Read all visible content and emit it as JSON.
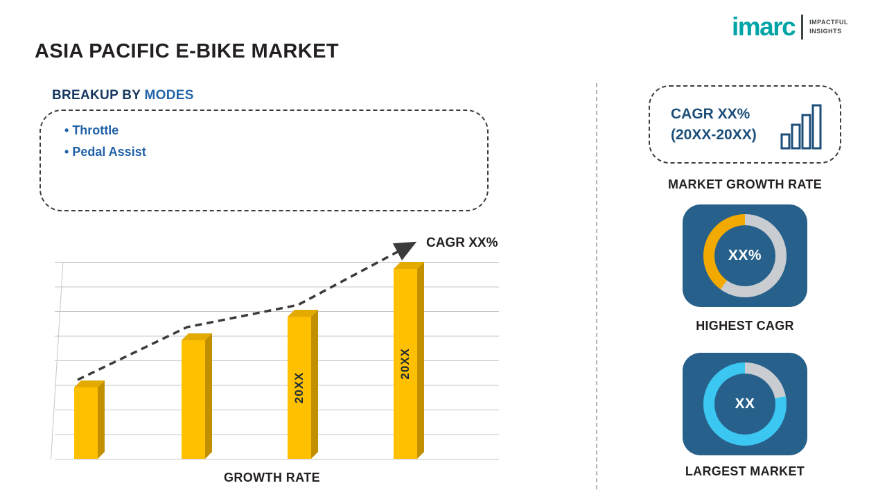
{
  "page": {
    "title": "ASIA PACIFIC E-BIKE MARKET"
  },
  "logo": {
    "brand": "imarc",
    "tagline_line1": "IMPACTFUL",
    "tagline_line2": "INSIGHTS"
  },
  "breakup": {
    "heading_prefix": "BREAKUP BY ",
    "heading_highlight": "MODES",
    "items": [
      "Throttle",
      "Pedal Assist"
    ]
  },
  "chart_data": [
    {
      "id": "growth_rate_bar",
      "type": "bar",
      "title": "GROWTH RATE",
      "categories": [
        "",
        "",
        "20XX",
        "20XX"
      ],
      "values": [
        36,
        60,
        72,
        96
      ],
      "ylim": [
        0,
        100
      ],
      "grid": true,
      "legend": "none",
      "bar_color": "#ffc000",
      "trend_label": "CAGR XX%",
      "trend_style": "dashed-arrow"
    },
    {
      "id": "highest_cagr_donut",
      "type": "pie",
      "label": "HIGHEST CAGR",
      "center_text": "XX%",
      "slices": [
        {
          "name": "highlight",
          "value": 40,
          "color": "#f2a900"
        },
        {
          "name": "remainder",
          "value": 60,
          "color": "#c9cdd2"
        }
      ]
    },
    {
      "id": "largest_market_donut",
      "type": "pie",
      "label": "LARGEST MARKET",
      "center_text": "XX",
      "slices": [
        {
          "name": "highlight",
          "value": 78,
          "color": "#3bc7f2"
        },
        {
          "name": "remainder",
          "value": 22,
          "color": "#c9cdd2"
        }
      ]
    }
  ],
  "right_panel": {
    "cagr_box": {
      "line1": "CAGR XX%",
      "line2": "(20XX-20XX)"
    },
    "market_growth_label": "MARKET GROWTH RATE"
  },
  "colors": {
    "brand_teal": "#00a4a7",
    "navy": "#1b4e79",
    "blue": "#2060a7",
    "bar_gold": "#ffc000",
    "card_blue": "#27618b",
    "ring_gray": "#c9cdd2",
    "arc_orange": "#f2a900",
    "arc_cyan": "#3bc7f2"
  }
}
